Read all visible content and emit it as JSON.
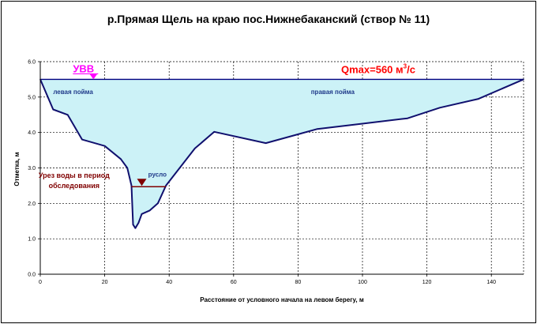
{
  "chart_data": {
    "type": "area",
    "title": "р.Прямая Щель на краю пос.Нижнебаканский (створ № 11)",
    "xlabel": "Расстояние от условного начала на левом берегу, м",
    "ylabel": "Отметка, м",
    "xlim": [
      0,
      150
    ],
    "ylim": [
      0,
      6
    ],
    "x_ticks": [
      "0",
      "20",
      "40",
      "60",
      "80",
      "100",
      "120",
      "140"
    ],
    "y_ticks": [
      "0.0",
      "1.0",
      "2.0",
      "3.0",
      "4.0",
      "5.0",
      "6.0"
    ],
    "grid": true,
    "profile": [
      {
        "x": 0,
        "y": 5.5
      },
      {
        "x": 4,
        "y": 4.65
      },
      {
        "x": 8.5,
        "y": 4.5
      },
      {
        "x": 13,
        "y": 3.8
      },
      {
        "x": 20,
        "y": 3.62
      },
      {
        "x": 25,
        "y": 3.25
      },
      {
        "x": 27,
        "y": 3.0
      },
      {
        "x": 28.3,
        "y": 2.5
      },
      {
        "x": 28.8,
        "y": 1.4
      },
      {
        "x": 29.5,
        "y": 1.3
      },
      {
        "x": 30.5,
        "y": 1.45
      },
      {
        "x": 31.5,
        "y": 1.7
      },
      {
        "x": 34,
        "y": 1.8
      },
      {
        "x": 36.5,
        "y": 2.0
      },
      {
        "x": 39,
        "y": 2.5
      },
      {
        "x": 48,
        "y": 3.55
      },
      {
        "x": 54,
        "y": 4.02
      },
      {
        "x": 70,
        "y": 3.7
      },
      {
        "x": 86,
        "y": 4.1
      },
      {
        "x": 100,
        "y": 4.25
      },
      {
        "x": 114,
        "y": 4.4
      },
      {
        "x": 124,
        "y": 4.7
      },
      {
        "x": 136,
        "y": 4.95
      },
      {
        "x": 150,
        "y": 5.5
      }
    ],
    "flood_level": 5.5,
    "low_water_level": 2.47,
    "low_water_x": [
      28.3,
      39
    ],
    "annotations": {
      "uvv_label": "УВВ",
      "uvv_x": 16.5,
      "qmax_prefix": "Qmax=560  м",
      "qmax_sup": "3",
      "qmax_suffix": "/с",
      "left_floodplain": "левая пойма",
      "right_floodplain": "правая пойма",
      "channel": "русло",
      "water_edge_line1": "Урез воды в период",
      "water_edge_line2": "обследования",
      "low_water_marker_x": 31.5
    },
    "colors": {
      "fill": "#ccf2f7",
      "profile_line": "#10106e",
      "flood_line": "#000080",
      "low_water": "#800000",
      "uvv": "#ff00ff",
      "qmax": "#ff0000",
      "floodplain_text": "#1f3a8a",
      "grid": "#000000"
    }
  }
}
